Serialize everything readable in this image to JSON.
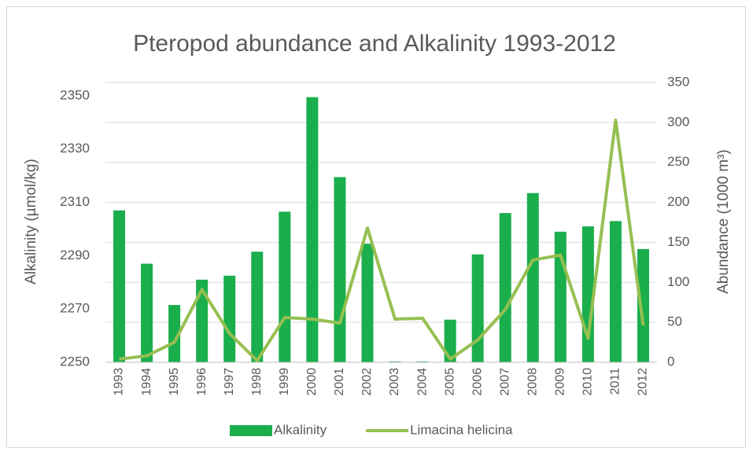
{
  "chart_data": {
    "type": "bar_line",
    "title": "Pteropod abundance and Alkalinity 1993-2012",
    "y_label": "Alkalinity (µmol/kg)",
    "y2_label": "Abundance (1000 m³)",
    "categories": [
      "1993",
      "1994",
      "1995",
      "1996",
      "1997",
      "1998",
      "1999",
      "2000",
      "2001",
      "2002",
      "2003",
      "2004",
      "2005",
      "2006",
      "2007",
      "2008",
      "2009",
      "2010",
      "2011",
      "2012"
    ],
    "series": [
      {
        "name": "Alkalinity",
        "type": "bar",
        "color": "#1aae4c",
        "axis": "y",
        "values": [
          2307,
          2287,
          2271.5,
          2281,
          2282.5,
          2291.5,
          2306.5,
          2349.5,
          2319.5,
          2294.5,
          2250,
          2250,
          2266,
          2290.5,
          2306,
          2313.5,
          2299,
          2301,
          2303,
          2292.5
        ]
      },
      {
        "name": "Limacina helicina",
        "type": "line",
        "color": "#96bf52",
        "axis": "y2",
        "values": [
          4,
          8,
          25,
          91,
          36,
          2,
          56,
          54,
          49,
          168,
          54,
          55,
          4,
          28,
          66,
          128,
          134,
          30,
          303,
          46
        ]
      }
    ],
    "ylim": [
      2250,
      2355
    ],
    "yticks": [
      2250,
      2270,
      2290,
      2310,
      2330,
      2350
    ],
    "y2lim": [
      0,
      350
    ],
    "y2ticks": [
      0,
      50,
      100,
      150,
      200,
      250,
      300,
      350
    ],
    "grid": true,
    "legend": "bottom"
  }
}
